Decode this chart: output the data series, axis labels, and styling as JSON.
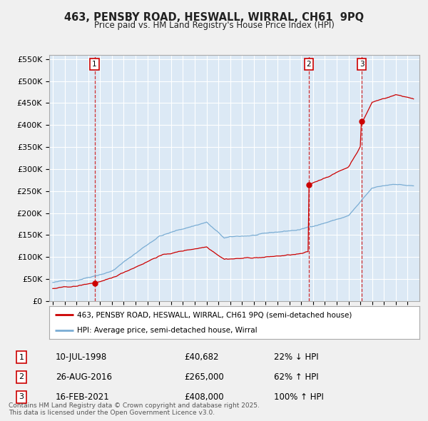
{
  "title": "463, PENSBY ROAD, HESWALL, WIRRAL, CH61  9PQ",
  "subtitle": "Price paid vs. HM Land Registry's House Price Index (HPI)",
  "sales": [
    {
      "date": 1998.53,
      "price": 40682,
      "label": "1",
      "year": "10-JUL-1998",
      "price_str": "£40,682",
      "pct": "22% ↓ HPI"
    },
    {
      "date": 2016.65,
      "price": 265000,
      "label": "2",
      "year": "26-AUG-2016",
      "price_str": "£265,000",
      "pct": "62% ↑ HPI"
    },
    {
      "date": 2021.12,
      "price": 408000,
      "label": "3",
      "year": "16-FEB-2021",
      "price_str": "£408,000",
      "pct": "100% ↑ HPI"
    }
  ],
  "legend_line1": "463, PENSBY ROAD, HESWALL, WIRRAL, CH61 9PQ (semi-detached house)",
  "legend_line2": "HPI: Average price, semi-detached house, Wirral",
  "footer": "Contains HM Land Registry data © Crown copyright and database right 2025.\nThis data is licensed under the Open Government Licence v3.0.",
  "ylim": [
    0,
    560000
  ],
  "yticks": [
    0,
    50000,
    100000,
    150000,
    200000,
    250000,
    300000,
    350000,
    400000,
    450000,
    500000,
    550000
  ],
  "ytick_labels": [
    "£0",
    "£50K",
    "£100K",
    "£150K",
    "£200K",
    "£250K",
    "£300K",
    "£350K",
    "£400K",
    "£450K",
    "£500K",
    "£550K"
  ],
  "red_color": "#cc0000",
  "blue_color": "#7aadd4",
  "background_color": "#f0f0f0",
  "plot_bg_color": "#dce9f5",
  "grid_color": "#ffffff",
  "sale1_date": 1998.53,
  "sale2_date": 2016.65,
  "sale3_date": 2021.12,
  "sale1_price": 40682,
  "sale2_price": 265000,
  "sale3_price": 408000
}
